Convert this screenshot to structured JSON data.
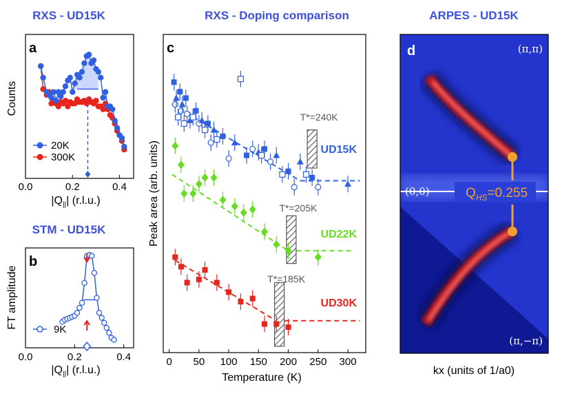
{
  "colors": {
    "title": "#3c50dc",
    "s20K": "#3060e0",
    "s300K": "#e8241c",
    "UD15K": "#3060e0",
    "UD22K": "#66dd22",
    "UD30K": "#e8241c",
    "stm": "#3060e0",
    "qhs": "#f0a030"
  },
  "titles": {
    "a": "RXS - UD15K",
    "b": "STM - UD15K",
    "c": "RXS - Doping comparison",
    "d": "ARPES - UD15K"
  },
  "panels": {
    "a": "a",
    "b": "b",
    "c": "c",
    "d": "d"
  },
  "chart_data": [
    {
      "id": "a",
      "type": "line",
      "title": "RXS - UD15K",
      "xlabel_prefix": "|Q",
      "xlabel_sub": "||",
      "xlabel_suffix": "| (r.l.u.)",
      "ylabel": "Counts",
      "xlim": [
        0,
        0.46
      ],
      "ylim": [
        0,
        1
      ],
      "xticks": [
        {
          "v": 0,
          "label": "0.0"
        },
        {
          "v": 0.2,
          "label": "0.2"
        },
        {
          "v": 0.4,
          "label": "0.4"
        }
      ],
      "series": [
        {
          "name": "20K",
          "symbol": "circle",
          "x": [
            0.065,
            0.075,
            0.09,
            0.1,
            0.11,
            0.12,
            0.13,
            0.14,
            0.15,
            0.16,
            0.17,
            0.18,
            0.19,
            0.2,
            0.21,
            0.22,
            0.23,
            0.24,
            0.25,
            0.26,
            0.27,
            0.28,
            0.29,
            0.3,
            0.31,
            0.32,
            0.33,
            0.34,
            0.35,
            0.36,
            0.37,
            0.38,
            0.39,
            0.4,
            0.41,
            0.42
          ],
          "y": [
            0.78,
            0.7,
            0.6,
            0.58,
            0.56,
            0.6,
            0.54,
            0.6,
            0.57,
            0.6,
            0.64,
            0.68,
            0.7,
            0.6,
            0.66,
            0.72,
            0.7,
            0.74,
            0.8,
            0.85,
            0.86,
            0.8,
            0.82,
            0.76,
            0.74,
            0.7,
            0.56,
            0.6,
            0.5,
            0.5,
            0.48,
            0.4,
            0.35,
            0.3,
            0.28,
            0.22
          ]
        },
        {
          "name": "300K",
          "symbol": "circle",
          "x": [
            0.065,
            0.075,
            0.09,
            0.1,
            0.11,
            0.12,
            0.13,
            0.14,
            0.15,
            0.16,
            0.17,
            0.18,
            0.19,
            0.2,
            0.21,
            0.22,
            0.23,
            0.24,
            0.25,
            0.26,
            0.27,
            0.28,
            0.29,
            0.3,
            0.31,
            0.32,
            0.33,
            0.34,
            0.35,
            0.36,
            0.37,
            0.38,
            0.39,
            0.4,
            0.41,
            0.42
          ],
          "y": [
            0.78,
            0.62,
            0.58,
            0.6,
            0.52,
            0.54,
            0.52,
            0.5,
            0.53,
            0.52,
            0.54,
            0.5,
            0.53,
            0.52,
            0.52,
            0.55,
            0.53,
            0.53,
            0.54,
            0.52,
            0.55,
            0.53,
            0.52,
            0.54,
            0.5,
            0.5,
            0.48,
            0.52,
            0.48,
            0.44,
            0.42,
            0.38,
            0.33,
            0.3,
            0.26,
            0.2
          ]
        }
      ],
      "marker_x": 0.265
    },
    {
      "id": "b",
      "type": "line",
      "title": "STM - UD15K",
      "xlabel_prefix": "|Q",
      "xlabel_sub": "||",
      "xlabel_suffix": "| (r.l.u.)",
      "ylabel": "FT amplitude",
      "xlim": [
        0,
        0.44
      ],
      "ylim": [
        0,
        1
      ],
      "xticks": [
        {
          "v": 0,
          "label": "0.0"
        },
        {
          "v": 0.2,
          "label": "0.2"
        },
        {
          "v": 0.4,
          "label": "0.4"
        }
      ],
      "series": [
        {
          "name": "9K",
          "symbol": "open-circle",
          "x": [
            0.15,
            0.16,
            0.17,
            0.18,
            0.19,
            0.2,
            0.21,
            0.22,
            0.23,
            0.24,
            0.25,
            0.26,
            0.27,
            0.28,
            0.29,
            0.3,
            0.31,
            0.32,
            0.33,
            0.34,
            0.35,
            0.36
          ],
          "y": [
            0.26,
            0.28,
            0.29,
            0.3,
            0.31,
            0.32,
            0.35,
            0.4,
            0.45,
            0.65,
            0.92,
            0.93,
            0.92,
            0.75,
            0.5,
            0.35,
            0.3,
            0.25,
            0.2,
            0.15,
            0.1,
            0.08
          ]
        }
      ],
      "marker_x": 0.25
    },
    {
      "id": "c",
      "type": "scatter",
      "title": "RXS - Doping comparison",
      "xlabel": "Temperature (K)",
      "ylabel": "Peak area (arb. units)",
      "xlim": [
        -10,
        330
      ],
      "ylim": [
        0,
        1
      ],
      "xticks": [
        {
          "v": 0,
          "label": "0"
        },
        {
          "v": 50,
          "label": "50"
        },
        {
          "v": 100,
          "label": "100"
        },
        {
          "v": 150,
          "label": "150"
        },
        {
          "v": 200,
          "label": "200"
        },
        {
          "v": 250,
          "label": "250"
        },
        {
          "v": 300,
          "label": "300"
        }
      ],
      "series": [
        {
          "name": "UD15K",
          "symbol": "mixed",
          "x": [
            8,
            10,
            12,
            15,
            18,
            20,
            22,
            25,
            28,
            30,
            35,
            40,
            45,
            50,
            55,
            60,
            65,
            70,
            75,
            80,
            90,
            100,
            110,
            120,
            130,
            140,
            150,
            155,
            160,
            170,
            180,
            190,
            200,
            210,
            220,
            230,
            240,
            250,
            300
          ],
          "y": [
            0.85,
            0.78,
            0.8,
            0.74,
            0.82,
            0.76,
            0.78,
            0.72,
            0.8,
            0.75,
            0.73,
            0.74,
            0.76,
            0.72,
            0.73,
            0.7,
            0.72,
            0.66,
            0.7,
            0.67,
            0.68,
            0.61,
            0.66,
            0.86,
            0.62,
            0.64,
            0.63,
            0.62,
            0.64,
            0.6,
            0.62,
            0.56,
            0.57,
            0.52,
            0.6,
            0.56,
            0.55,
            0.52,
            0.53
          ],
          "fit": {
            "x": [
              5,
              220
            ],
            "y": [
              0.78,
              0.54
            ]
          },
          "flat": {
            "x": [
              220,
              320
            ],
            "y": 0.54
          },
          "Tstar": 240,
          "Tstar_label": "T*=240K"
        },
        {
          "name": "UD22K",
          "symbol": "diamond",
          "x": [
            10,
            20,
            25,
            40,
            50,
            60,
            75,
            90,
            110,
            125,
            140,
            160,
            180,
            200,
            250
          ],
          "y": [
            0.65,
            0.59,
            0.5,
            0.5,
            0.53,
            0.55,
            0.55,
            0.48,
            0.46,
            0.44,
            0.45,
            0.38,
            0.34,
            0.32,
            0.3
          ],
          "fit": {
            "x": [
              5,
              200
            ],
            "y": [
              0.56,
              0.32
            ]
          },
          "flat": {
            "x": [
              200,
              310
            ],
            "y": 0.32
          },
          "Tstar": 205,
          "Tstar_label": "T*=205K"
        },
        {
          "name": "UD30K",
          "symbol": "square",
          "x": [
            10,
            20,
            30,
            50,
            60,
            80,
            100,
            120,
            140,
            160,
            180,
            200
          ],
          "y": [
            0.3,
            0.27,
            0.22,
            0.23,
            0.26,
            0.22,
            0.19,
            0.16,
            0.17,
            0.09,
            0.09,
            0.08
          ],
          "fit": {
            "x": [
              10,
              180
            ],
            "y": [
              0.29,
              0.1
            ]
          },
          "flat": {
            "x": [
              180,
              320
            ],
            "y": 0.1
          },
          "Tstar": 185,
          "Tstar_label": "T*=185K"
        }
      ]
    }
  ],
  "arpes": {
    "xlabel": "kx (units of 1/a0)",
    "corner_tr": "(π,π)",
    "corner_br": "(π,−π)",
    "origin": "(0,0)",
    "qhs_prefix": "Q",
    "qhs_sub": "HS",
    "qhs_value": "=0.255"
  }
}
